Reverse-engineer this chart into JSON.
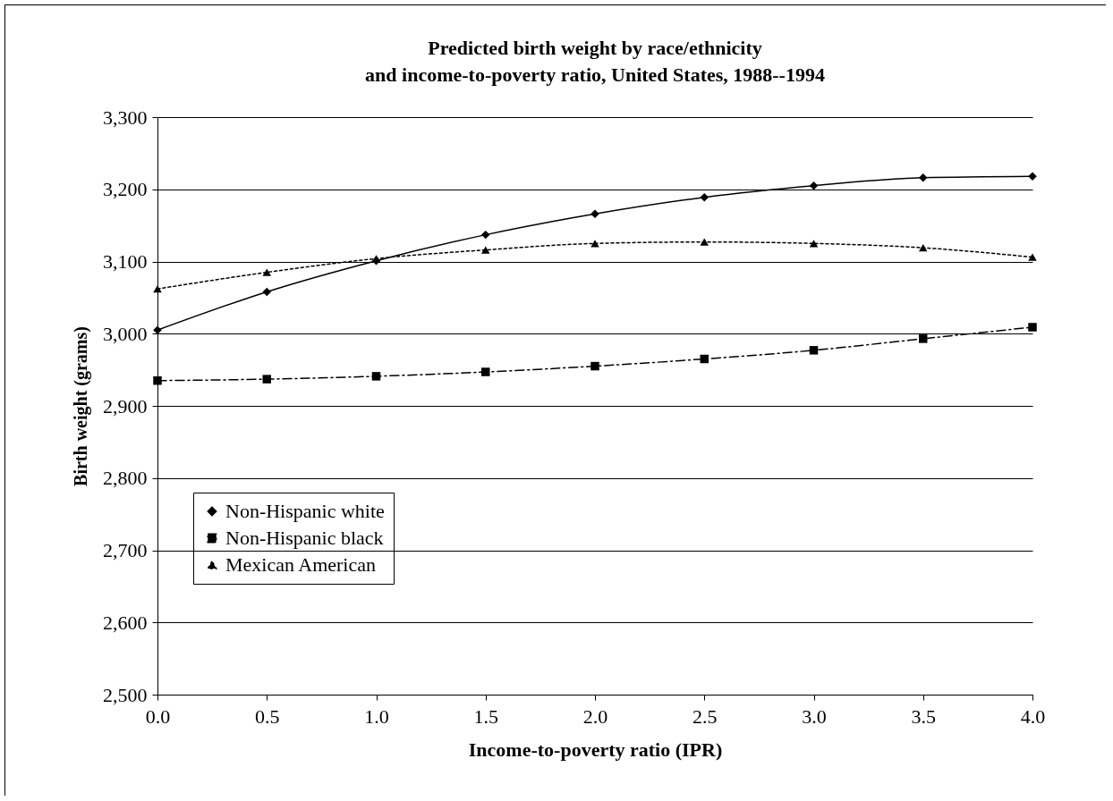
{
  "chart_data": {
    "type": "line",
    "title": [
      "Predicted birth weight by race/ethnicity",
      "and income-to-poverty ratio, United States, 1988--1994"
    ],
    "xlabel": "Income-to-poverty ratio (IPR)",
    "ylabel": "Birth weight (grams)",
    "x": [
      0,
      0.5,
      1,
      1.5,
      2,
      2.5,
      3,
      3.5,
      4
    ],
    "series": [
      {
        "name": "Non-Hispanic white",
        "color": "#000000",
        "marker": "diamond",
        "line_style": "solid",
        "values": [
          3005,
          3058,
          3101,
          3137,
          3166,
          3189,
          3205,
          3216,
          3218
        ]
      },
      {
        "name": "Non-Hispanic black",
        "color": "#000000",
        "marker": "square",
        "line_style": "dashed",
        "values": [
          2935,
          2937,
          2941,
          2947,
          2955,
          2965,
          2977,
          2993,
          3009
        ]
      },
      {
        "name": "Mexican American",
        "color": "#000000",
        "marker": "triangle",
        "line_style": "dotted",
        "values": [
          3062,
          3085,
          3104,
          3116,
          3125,
          3127,
          3125,
          3119,
          3106
        ]
      }
    ],
    "xlim": [
      0,
      4
    ],
    "xticks": [
      {
        "value": 0,
        "label": "0.0"
      },
      {
        "value": 0.5,
        "label": "0.5"
      },
      {
        "value": 1,
        "label": "1.0"
      },
      {
        "value": 1.5,
        "label": "1.5"
      },
      {
        "value": 2,
        "label": "2.0"
      },
      {
        "value": 2.5,
        "label": "2.5"
      },
      {
        "value": 3,
        "label": "3.0"
      },
      {
        "value": 3.5,
        "label": "3.5"
      },
      {
        "value": 4,
        "label": "4.0"
      }
    ],
    "ylim": [
      2500,
      3300
    ],
    "yticks": [
      {
        "value": 2500,
        "label": "2,500"
      },
      {
        "value": 2600,
        "label": "2,600"
      },
      {
        "value": 2700,
        "label": "2,700"
      },
      {
        "value": 2800,
        "label": "2,800"
      },
      {
        "value": 2900,
        "label": "2,900"
      },
      {
        "value": 3000,
        "label": "3,000"
      },
      {
        "value": 3100,
        "label": "3,100"
      },
      {
        "value": 3200,
        "label": "3,200"
      },
      {
        "value": 3300,
        "label": "3,300"
      }
    ],
    "grid": "y",
    "legend": "bottom left"
  }
}
